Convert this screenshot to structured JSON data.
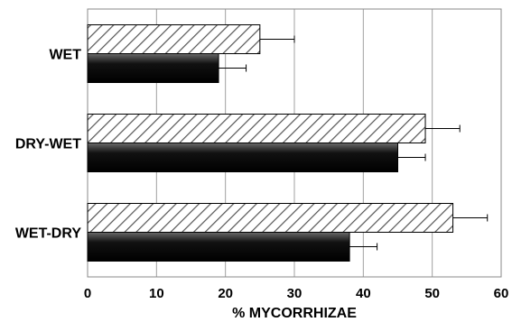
{
  "chart_data": {
    "type": "bar",
    "orientation": "horizontal",
    "categories": [
      "WET",
      "DRY-WET",
      "WET-DRY"
    ],
    "series": [
      {
        "pattern": "hatched",
        "values": [
          25,
          49,
          53
        ],
        "errors": [
          5,
          5,
          5
        ]
      },
      {
        "pattern": "solid-black",
        "values": [
          19,
          45,
          38
        ],
        "errors": [
          4,
          4,
          4
        ]
      }
    ],
    "xlabel": "% MYCORRHIZAE",
    "ylabel": "",
    "xlim": [
      0,
      60
    ],
    "xticks": [
      0,
      10,
      20,
      30,
      40,
      50,
      60
    ],
    "grid": "vertical",
    "colors": {
      "hatched_fill": "#ffffff",
      "hatch_line": "#555555",
      "solid_top": "#6a6a6a",
      "solid_bottom": "#000000",
      "grid": "#a0a0a0"
    }
  }
}
